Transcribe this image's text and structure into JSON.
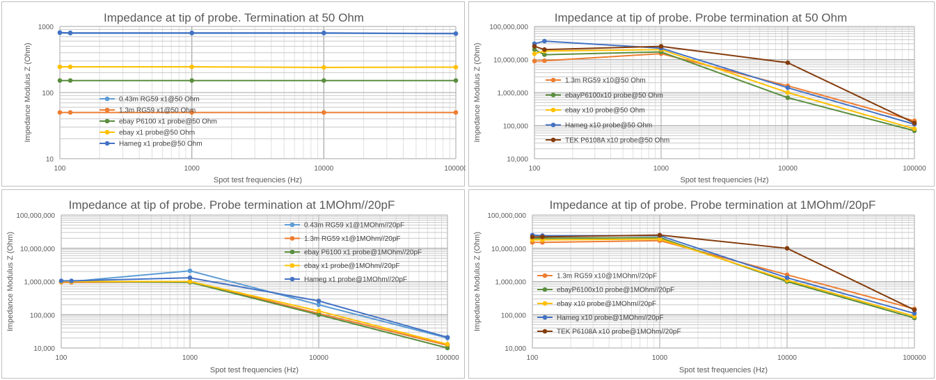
{
  "chart_data": [
    {
      "type": "line",
      "title": "Impedance at tip of probe. Termination at 50 Ohm",
      "xlabel": "Spot test frequencies (Hz)",
      "ylabel": "Impedance Modulus Z (Ohm)",
      "xscale": "log",
      "yscale": "log",
      "xlim": [
        100,
        100000
      ],
      "ylim": [
        10,
        1000
      ],
      "xticks": [
        100,
        1000,
        10000,
        100000
      ],
      "xtick_labels": [
        "100",
        "1000",
        "10000",
        "100000"
      ],
      "yticks": [
        10,
        100,
        1000
      ],
      "ytick_labels": [
        "10",
        "100",
        "1000"
      ],
      "grid": true,
      "legend_position": "left-middle",
      "x": [
        100,
        120,
        1000,
        10000,
        100000
      ],
      "series": [
        {
          "name": "0.43m RG59 x1@50 Ohm",
          "color": "#5b9bd5",
          "values": [
            800,
            790,
            790,
            790,
            780
          ]
        },
        {
          "name": "1.3m RG59 x1@50 Ohm",
          "color": "#ed7d31",
          "values": [
            50,
            50,
            50,
            50,
            50
          ]
        },
        {
          "name": "ebay P6100 x1 probe@50 Ohm",
          "color": "#5a8e3e",
          "values": [
            152,
            152,
            152,
            152,
            152
          ]
        },
        {
          "name": "ebay x1 probe@50 Ohm",
          "color": "#ffc000",
          "values": [
            245,
            245,
            245,
            240,
            242
          ]
        },
        {
          "name": "Hameg x1 probe@50 Ohm",
          "color": "#4472c4",
          "values": [
            810,
            800,
            800,
            800,
            780
          ]
        }
      ]
    },
    {
      "type": "line",
      "title": "Impedance at tip of probe. Probe termination at 50 Ohm",
      "xlabel": "Spot test frequencies (Hz)",
      "ylabel": "Impedance Modulus Z (Ohm)",
      "xscale": "log",
      "yscale": "log",
      "xlim": [
        100,
        100000
      ],
      "ylim": [
        10000,
        100000000
      ],
      "xticks": [
        100,
        1000,
        10000,
        100000
      ],
      "xtick_labels": [
        "100",
        "1000",
        "10000",
        "100000"
      ],
      "yticks": [
        10000,
        100000,
        1000000,
        10000000,
        100000000
      ],
      "ytick_labels": [
        "10,000",
        "100,000",
        "1,000,000",
        "10,000,000",
        "100,000,000"
      ],
      "grid": true,
      "legend_position": "left-middle",
      "x": [
        100,
        120,
        1000,
        10000,
        100000
      ],
      "series": [
        {
          "name": "1.3m RG59 x10@50 Ohm",
          "color": "#ed7d31",
          "values": [
            9000000,
            9200000,
            15000000,
            1600000,
            140000
          ]
        },
        {
          "name": "ebayP6100x10 probe@50 Ohm",
          "color": "#5a8e3e",
          "values": [
            20000000,
            14000000,
            17000000,
            700000,
            70000
          ]
        },
        {
          "name": "ebay x10 probe@50 Ohm",
          "color": "#ffc000",
          "values": [
            15000000,
            18000000,
            20000000,
            1000000,
            80000
          ]
        },
        {
          "name": "Hameg x10 probe@50 Ohm",
          "color": "#4472c4",
          "values": [
            30000000,
            36000000,
            22000000,
            1400000,
            110000
          ]
        },
        {
          "name": "TEK P6108A x10 probe@50 Ohm",
          "color": "#843c0c",
          "values": [
            25000000,
            20000000,
            25000000,
            8000000,
            120000
          ]
        }
      ]
    },
    {
      "type": "line",
      "title": "Impedance at tip of probe. Probe termination at 1MOhm//20pF",
      "xlabel": "Spot test frequencies (Hz)",
      "ylabel": "Impedance Modulus Z (Ohm)",
      "xscale": "log",
      "yscale": "log",
      "xlim": [
        100,
        100000
      ],
      "ylim": [
        10000,
        100000000
      ],
      "xticks": [
        100,
        1000,
        10000,
        100000
      ],
      "xtick_labels": [
        "100",
        "1000",
        "10000",
        "100000"
      ],
      "yticks": [
        10000,
        100000,
        1000000,
        10000000,
        100000000
      ],
      "ytick_labels": [
        "10,000",
        "100,000",
        "1,000,000",
        "10,000,000",
        "100,000,000"
      ],
      "grid": true,
      "legend_position": "top-right",
      "x": [
        100,
        120,
        1000,
        10000,
        100000
      ],
      "series": [
        {
          "name": "0.43m RG59 x1@1MOhm//20pF",
          "color": "#5b9bd5",
          "values": [
            1000000,
            1000000,
            2100000,
            200000,
            20000
          ]
        },
        {
          "name": "1.3m RG59 x1@1MOhm//20pF",
          "color": "#ed7d31",
          "values": [
            950000,
            950000,
            1000000,
            110000,
            12000
          ]
        },
        {
          "name": "ebay P6100 x1 probe@1MOhm//20pF",
          "color": "#5a8e3e",
          "values": [
            1000000,
            1000000,
            950000,
            100000,
            10000
          ]
        },
        {
          "name": "ebay x1 probe@1MOhm//20pF",
          "color": "#ffc000",
          "values": [
            1000000,
            1000000,
            1000000,
            130000,
            13000
          ]
        },
        {
          "name": "Hameg x1 probe@1MOhm//20pF",
          "color": "#4472c4",
          "values": [
            1050000,
            1050000,
            1300000,
            260000,
            21000
          ]
        }
      ]
    },
    {
      "type": "line",
      "title": "Impedance at tip of probe. Probe termination at 1MOhm//20pF",
      "xlabel": "Spot test frequencies (Hz)",
      "ylabel": "Impedance Modulus Z (Ohm)",
      "xscale": "log",
      "yscale": "log",
      "xlim": [
        100,
        100000
      ],
      "ylim": [
        10000,
        100000000
      ],
      "xticks": [
        100,
        1000,
        10000,
        100000
      ],
      "xtick_labels": [
        "100",
        "1000",
        "10000",
        "100000"
      ],
      "yticks": [
        10000,
        100000,
        1000000,
        10000000,
        100000000
      ],
      "ytick_labels": [
        "10,000",
        "100,000",
        "1,000,000",
        "10,000,000",
        "100,000,000"
      ],
      "grid": true,
      "legend_position": "left-middle",
      "x": [
        100,
        120,
        1000,
        10000,
        100000
      ],
      "series": [
        {
          "name": "1.3m RG59 x10@1MOhm//20pF",
          "color": "#ed7d31",
          "values": [
            15000000,
            15000000,
            17000000,
            1600000,
            150000
          ]
        },
        {
          "name": "ebayP6100x10 probe@1MOhm//20pF",
          "color": "#5a8e3e",
          "values": [
            20000000,
            20000000,
            21000000,
            1000000,
            80000
          ]
        },
        {
          "name": "ebay x10 probe@1MOhm//20pF",
          "color": "#ffc000",
          "values": [
            18000000,
            18000000,
            19000000,
            1100000,
            90000
          ]
        },
        {
          "name": "Hameg x10 probe@1MOhm//20pF",
          "color": "#4472c4",
          "values": [
            25000000,
            24000000,
            24000000,
            1300000,
            110000
          ]
        },
        {
          "name": "TEK P6108A x10 probe@1MOhm//20pF",
          "color": "#843c0c",
          "values": [
            22000000,
            22000000,
            25000000,
            10000000,
            140000
          ]
        }
      ]
    }
  ]
}
